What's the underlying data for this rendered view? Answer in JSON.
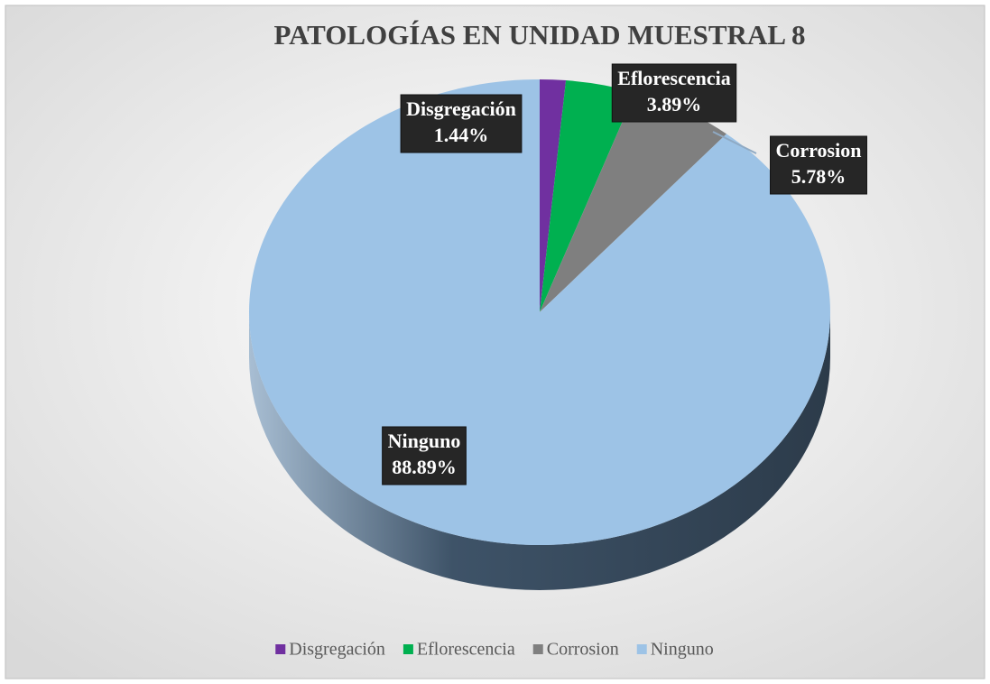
{
  "chart_data": {
    "type": "pie",
    "title": "PATOLOGÍAS EN UNIDAD MUESTRAL 8",
    "categories": [
      "Disgregación",
      "Eflorescencia",
      "Corrosion",
      "Ninguno"
    ],
    "values": [
      1.44,
      3.89,
      5.78,
      88.89
    ],
    "value_labels": [
      "1.44%",
      "3.89%",
      "5.78%",
      "88.89%"
    ],
    "colors": [
      "#7030a0",
      "#00b050",
      "#7f7f7f",
      "#9dc3e6"
    ],
    "legend": "bottom"
  }
}
